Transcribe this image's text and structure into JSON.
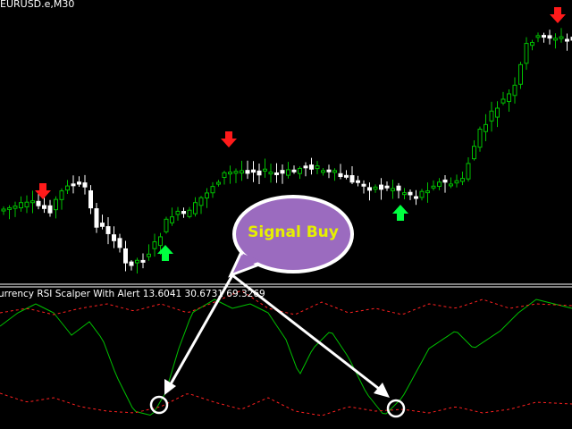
{
  "chart_data": {
    "type": "candlestick",
    "title": "EURUSD.e,M30",
    "indicator": {
      "label": "urrency RSI Scalper With Alert 13.6041 30.6731 69.3269",
      "values": [
        13.6041,
        30.6731,
        69.3269
      ],
      "series_colors": {
        "rsi": "#00c000",
        "bands": "#ff2020"
      }
    },
    "signals": [
      {
        "type": "sell",
        "color": "#ff1a1a"
      },
      {
        "type": "sell",
        "color": "#ff1a1a"
      },
      {
        "type": "sell",
        "color": "#ff1a1a"
      },
      {
        "type": "buy",
        "color": "#00ff40"
      },
      {
        "type": "buy",
        "color": "#00ff40"
      }
    ]
  },
  "callout": {
    "text": "Signal Buy",
    "fill": "#9b6bbf",
    "text_color": "#e6f000"
  },
  "colors": {
    "background": "#000000",
    "bull": "#00c000",
    "candle_body": "#ffffff"
  }
}
